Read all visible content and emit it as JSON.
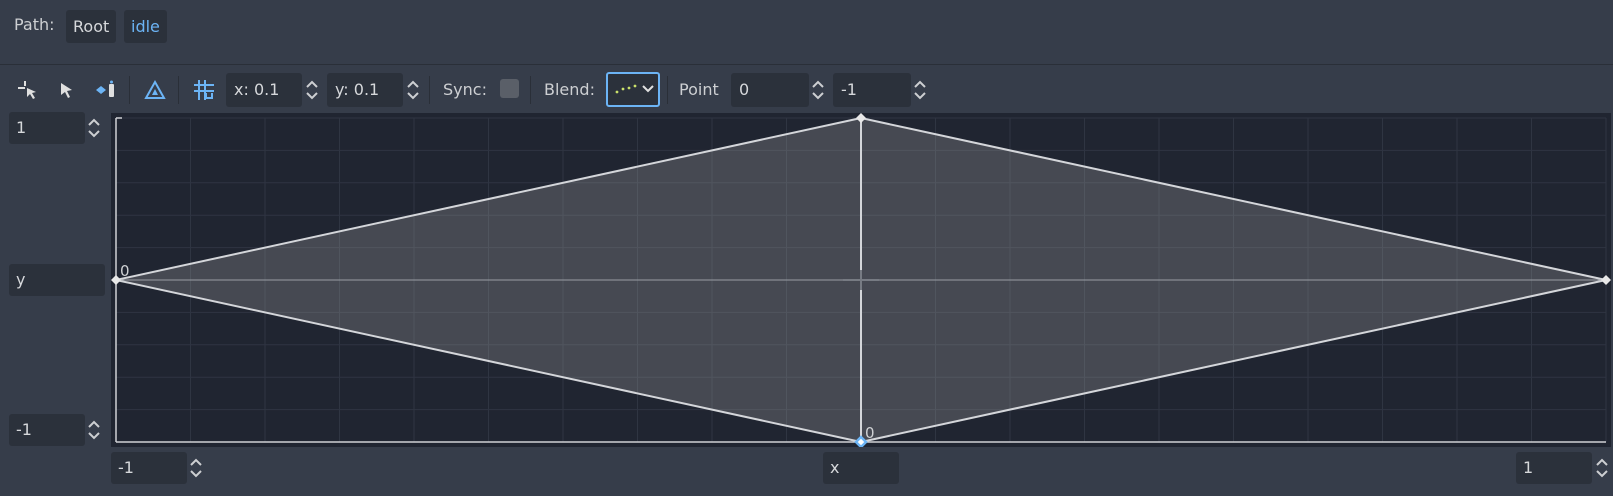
{
  "path": {
    "label": "Path:",
    "crumbs": [
      "Root",
      "idle"
    ]
  },
  "toolbar": {
    "snap_x": "x: 0.1",
    "snap_y": "y: 0.1",
    "sync_label": "Sync:",
    "sync_checked": false,
    "blend_label": "Blend:",
    "point_label": "Point",
    "point_x": "0",
    "point_y": "-1",
    "icons": [
      "create-points-icon",
      "select-move-icon",
      "create-triangles-icon",
      "erase-icon",
      "grid-snap-icon"
    ]
  },
  "space": {
    "max_y": "1",
    "y_label": "y",
    "min_y": "-1",
    "min_x": "-1",
    "x_label": "x",
    "max_x": "1"
  },
  "blend_points": [
    {
      "x": 0,
      "y": 1,
      "name": ""
    },
    {
      "x": -1,
      "y": 0,
      "name": "0"
    },
    {
      "x": 1,
      "y": 0,
      "name": ""
    },
    {
      "x": 0,
      "y": -1,
      "name": "0",
      "selected": true
    }
  ],
  "triangles": [
    [
      0,
      1,
      3
    ],
    [
      0,
      2,
      3
    ]
  ],
  "colors": {
    "accent": "#6cb4f5",
    "panel": "#363d4a",
    "graph_bg": "#202531",
    "field_bg": "#2b313b"
  }
}
